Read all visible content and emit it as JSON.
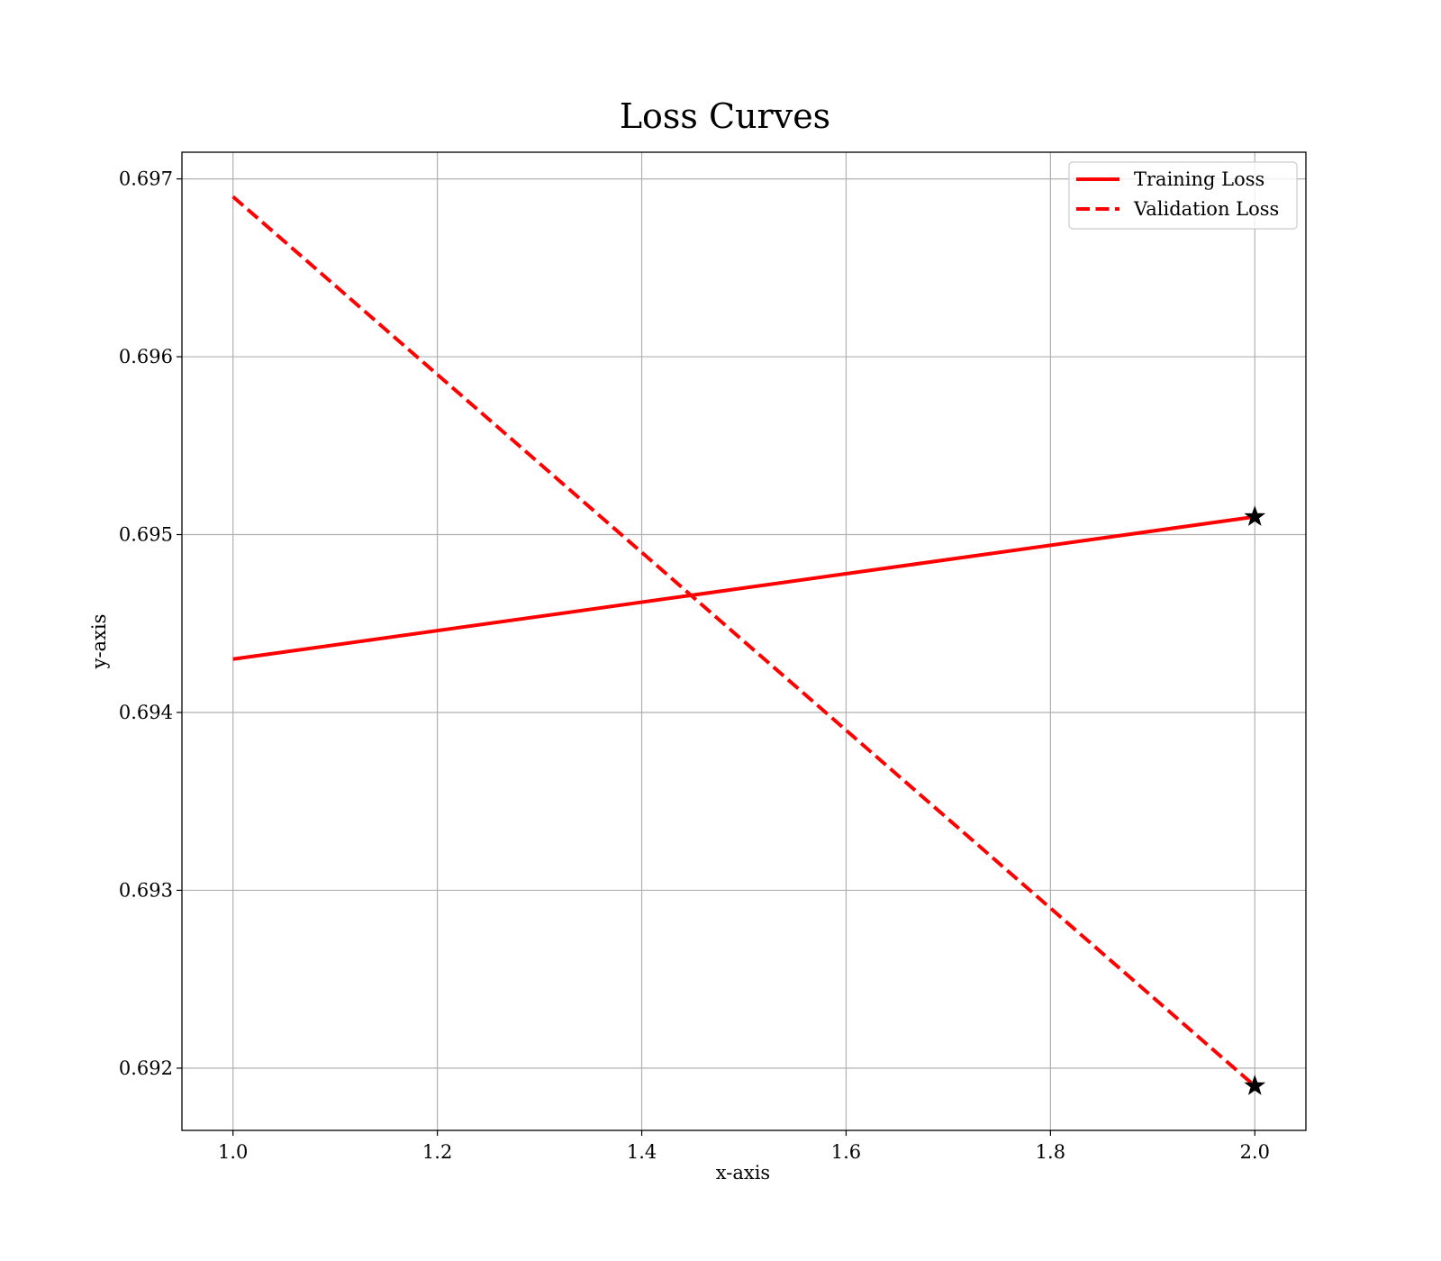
{
  "chart_data": {
    "type": "line",
    "title": "Loss Curves",
    "xlabel": "x-axis",
    "ylabel": "y-axis",
    "xlim": [
      0.95,
      2.05
    ],
    "ylim": [
      0.69165,
      0.69715
    ],
    "xticks": [
      1.0,
      1.2,
      1.4,
      1.6,
      1.8,
      2.0
    ],
    "xtick_labels": [
      "1.0",
      "1.2",
      "1.4",
      "1.6",
      "1.8",
      "2.0"
    ],
    "yticks": [
      0.692,
      0.693,
      0.694,
      0.695,
      0.696,
      0.697
    ],
    "ytick_labels": [
      "0.692",
      "0.693",
      "0.694",
      "0.695",
      "0.696",
      "0.697"
    ],
    "grid": true,
    "legend_position": "top-right",
    "series": [
      {
        "name": "Training Loss",
        "x": [
          1.0,
          2.0
        ],
        "y": [
          0.6943,
          0.6951
        ],
        "color": "#ff0000",
        "linestyle": "solid",
        "end_marker": "star"
      },
      {
        "name": "Validation Loss",
        "x": [
          1.0,
          2.0
        ],
        "y": [
          0.6969,
          0.6919
        ],
        "color": "#ff0000",
        "linestyle": "dashed",
        "end_marker": "star"
      }
    ],
    "marker_color": "#000000"
  }
}
